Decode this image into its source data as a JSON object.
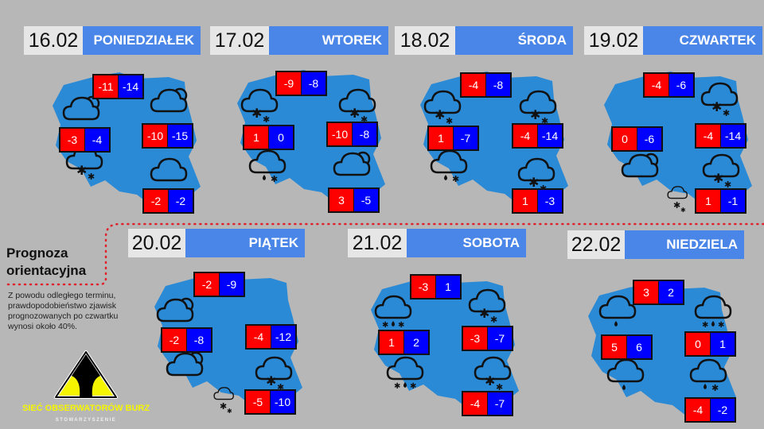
{
  "note": {
    "title": "Prognoza orientacyjna",
    "text": "Z powodu odległego terminu, prawdopodobieństwo zjawisk prognozowanych po czwartku wynosi około 40%."
  },
  "logo": {
    "name": "SIEĆ OBSERWATORÓW BURZ",
    "subtitle": "STOWARZYSZENIE"
  },
  "colors": {
    "map": "#2a8ad6",
    "header": "#4a86e8",
    "max": "#ff0000",
    "min": "#0000ff",
    "background": "#b7b7b7",
    "dotted_line": "#e0202a"
  },
  "days": [
    {
      "date": "16.02",
      "day": "PONIEDZIAŁEK",
      "temps": [
        [
          "-11",
          "-14"
        ],
        [
          "-3",
          "-4"
        ],
        [
          "-10",
          "-15"
        ],
        [
          "-2",
          "-2"
        ]
      ],
      "icons": [
        "cloud-sun-icon",
        "cloud-sun-icon",
        "cloud-snow-icon",
        "cloud-icon"
      ]
    },
    {
      "date": "17.02",
      "day": "WTOREK",
      "temps": [
        [
          "-9",
          "-8"
        ],
        [
          "1",
          "0"
        ],
        [
          "-10",
          "-8"
        ],
        [
          "3",
          "-5"
        ]
      ],
      "icons": [
        "cloud-snow-icon",
        "cloud-snow-icon",
        "cloud-rain-snow-icon",
        "cloud-sun-icon"
      ]
    },
    {
      "date": "18.02",
      "day": "ŚRODA",
      "temps": [
        [
          "-4",
          "-8"
        ],
        [
          "1",
          "-7"
        ],
        [
          "-4",
          "-14"
        ],
        [
          "1",
          "-3"
        ]
      ],
      "icons": [
        "cloud-snow-icon",
        "cloud-snow-icon",
        "cloud-rain-snow-icon",
        "cloud-snow-icon"
      ]
    },
    {
      "date": "19.02",
      "day": "CZWARTEK",
      "temps": [
        [
          "-4",
          "-6"
        ],
        [
          "0",
          "-6"
        ],
        [
          "-4",
          "-14"
        ],
        [
          "1",
          "-1"
        ]
      ],
      "icons": [
        "cloud-snow-icon",
        "cloud-sun-icon",
        "cloud-snow-icon",
        "cloud-snow-small-icon"
      ]
    },
    {
      "date": "20.02",
      "day": "PIĄTEK",
      "temps": [
        [
          "-2",
          "-9"
        ],
        [
          "-2",
          "-8"
        ],
        [
          "-4",
          "-12"
        ],
        [
          "-5",
          "-10"
        ]
      ],
      "icons": [
        "cloud-sun-icon",
        "cloud-sun-icon",
        "cloud-snow-icon",
        "cloud-snow-small-icon"
      ]
    },
    {
      "date": "21.02",
      "day": "SOBOTA",
      "temps": [
        [
          "-3",
          "1"
        ],
        [
          "1",
          "2"
        ],
        [
          "-3",
          "-7"
        ],
        [
          "-4",
          "-7"
        ]
      ],
      "icons": [
        "cloud-sleet-icon",
        "cloud-snow-icon",
        "cloud-sleet-icon",
        "cloud-snow-icon"
      ]
    },
    {
      "date": "22.02",
      "day": "NIEDZIELA",
      "temps": [
        [
          "3",
          "2"
        ],
        [
          "5",
          "6"
        ],
        [
          "0",
          "1"
        ],
        [
          "-4",
          "-2"
        ]
      ],
      "icons": [
        "cloud-rain-icon",
        "cloud-sleet-icon",
        "cloud-rain-icon",
        "cloud-rain-snow-icon"
      ]
    }
  ]
}
